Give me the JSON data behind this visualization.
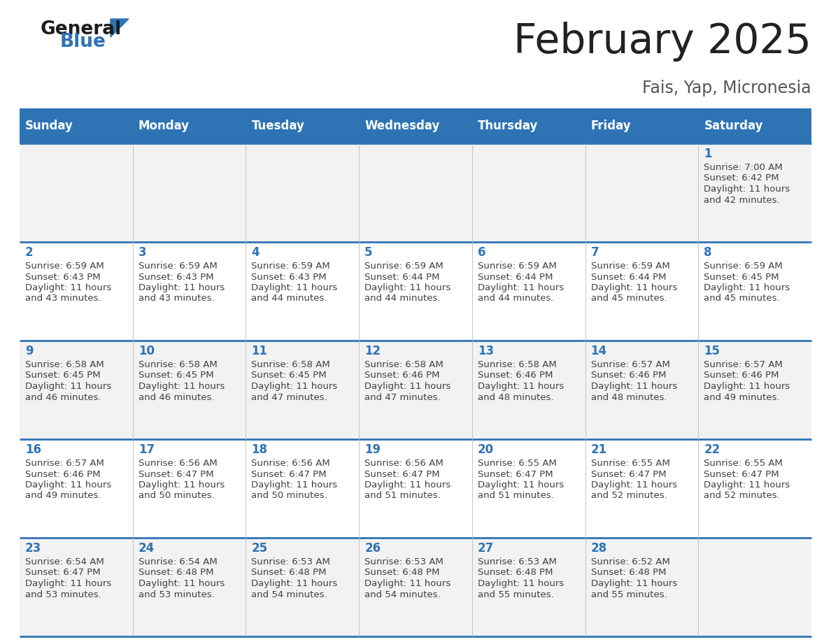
{
  "title": "February 2025",
  "subtitle": "Fais, Yap, Micronesia",
  "days_of_week": [
    "Sunday",
    "Monday",
    "Tuesday",
    "Wednesday",
    "Thursday",
    "Friday",
    "Saturday"
  ],
  "header_bg": "#2E74B5",
  "header_text": "#FFFFFF",
  "row_bg_odd": "#F2F2F2",
  "row_bg_even": "#FFFFFF",
  "cell_text_color": "#404040",
  "day_number_color": "#2E74B5",
  "divider_color": "#2E74B5",
  "title_color": "#222222",
  "subtitle_color": "#555555",
  "calendar": [
    [
      {
        "day": null,
        "sunrise": null,
        "sunset": null,
        "daylight": null
      },
      {
        "day": null,
        "sunrise": null,
        "sunset": null,
        "daylight": null
      },
      {
        "day": null,
        "sunrise": null,
        "sunset": null,
        "daylight": null
      },
      {
        "day": null,
        "sunrise": null,
        "sunset": null,
        "daylight": null
      },
      {
        "day": null,
        "sunrise": null,
        "sunset": null,
        "daylight": null
      },
      {
        "day": null,
        "sunrise": null,
        "sunset": null,
        "daylight": null
      },
      {
        "day": 1,
        "sunrise": "7:00 AM",
        "sunset": "6:42 PM",
        "daylight": "11 hours",
        "daylight2": "and 42 minutes."
      }
    ],
    [
      {
        "day": 2,
        "sunrise": "6:59 AM",
        "sunset": "6:43 PM",
        "daylight": "11 hours",
        "daylight2": "and 43 minutes."
      },
      {
        "day": 3,
        "sunrise": "6:59 AM",
        "sunset": "6:43 PM",
        "daylight": "11 hours",
        "daylight2": "and 43 minutes."
      },
      {
        "day": 4,
        "sunrise": "6:59 AM",
        "sunset": "6:43 PM",
        "daylight": "11 hours",
        "daylight2": "and 44 minutes."
      },
      {
        "day": 5,
        "sunrise": "6:59 AM",
        "sunset": "6:44 PM",
        "daylight": "11 hours",
        "daylight2": "and 44 minutes."
      },
      {
        "day": 6,
        "sunrise": "6:59 AM",
        "sunset": "6:44 PM",
        "daylight": "11 hours",
        "daylight2": "and 44 minutes."
      },
      {
        "day": 7,
        "sunrise": "6:59 AM",
        "sunset": "6:44 PM",
        "daylight": "11 hours",
        "daylight2": "and 45 minutes."
      },
      {
        "day": 8,
        "sunrise": "6:59 AM",
        "sunset": "6:45 PM",
        "daylight": "11 hours",
        "daylight2": "and 45 minutes."
      }
    ],
    [
      {
        "day": 9,
        "sunrise": "6:58 AM",
        "sunset": "6:45 PM",
        "daylight": "11 hours",
        "daylight2": "and 46 minutes."
      },
      {
        "day": 10,
        "sunrise": "6:58 AM",
        "sunset": "6:45 PM",
        "daylight": "11 hours",
        "daylight2": "and 46 minutes."
      },
      {
        "day": 11,
        "sunrise": "6:58 AM",
        "sunset": "6:45 PM",
        "daylight": "11 hours",
        "daylight2": "and 47 minutes."
      },
      {
        "day": 12,
        "sunrise": "6:58 AM",
        "sunset": "6:46 PM",
        "daylight": "11 hours",
        "daylight2": "and 47 minutes."
      },
      {
        "day": 13,
        "sunrise": "6:58 AM",
        "sunset": "6:46 PM",
        "daylight": "11 hours",
        "daylight2": "and 48 minutes."
      },
      {
        "day": 14,
        "sunrise": "6:57 AM",
        "sunset": "6:46 PM",
        "daylight": "11 hours",
        "daylight2": "and 48 minutes."
      },
      {
        "day": 15,
        "sunrise": "6:57 AM",
        "sunset": "6:46 PM",
        "daylight": "11 hours",
        "daylight2": "and 49 minutes."
      }
    ],
    [
      {
        "day": 16,
        "sunrise": "6:57 AM",
        "sunset": "6:46 PM",
        "daylight": "11 hours",
        "daylight2": "and 49 minutes."
      },
      {
        "day": 17,
        "sunrise": "6:56 AM",
        "sunset": "6:47 PM",
        "daylight": "11 hours",
        "daylight2": "and 50 minutes."
      },
      {
        "day": 18,
        "sunrise": "6:56 AM",
        "sunset": "6:47 PM",
        "daylight": "11 hours",
        "daylight2": "and 50 minutes."
      },
      {
        "day": 19,
        "sunrise": "6:56 AM",
        "sunset": "6:47 PM",
        "daylight": "11 hours",
        "daylight2": "and 51 minutes."
      },
      {
        "day": 20,
        "sunrise": "6:55 AM",
        "sunset": "6:47 PM",
        "daylight": "11 hours",
        "daylight2": "and 51 minutes."
      },
      {
        "day": 21,
        "sunrise": "6:55 AM",
        "sunset": "6:47 PM",
        "daylight": "11 hours",
        "daylight2": "and 52 minutes."
      },
      {
        "day": 22,
        "sunrise": "6:55 AM",
        "sunset": "6:47 PM",
        "daylight": "11 hours",
        "daylight2": "and 52 minutes."
      }
    ],
    [
      {
        "day": 23,
        "sunrise": "6:54 AM",
        "sunset": "6:47 PM",
        "daylight": "11 hours",
        "daylight2": "and 53 minutes."
      },
      {
        "day": 24,
        "sunrise": "6:54 AM",
        "sunset": "6:48 PM",
        "daylight": "11 hours",
        "daylight2": "and 53 minutes."
      },
      {
        "day": 25,
        "sunrise": "6:53 AM",
        "sunset": "6:48 PM",
        "daylight": "11 hours",
        "daylight2": "and 54 minutes."
      },
      {
        "day": 26,
        "sunrise": "6:53 AM",
        "sunset": "6:48 PM",
        "daylight": "11 hours",
        "daylight2": "and 54 minutes."
      },
      {
        "day": 27,
        "sunrise": "6:53 AM",
        "sunset": "6:48 PM",
        "daylight": "11 hours",
        "daylight2": "and 55 minutes."
      },
      {
        "day": 28,
        "sunrise": "6:52 AM",
        "sunset": "6:48 PM",
        "daylight": "11 hours",
        "daylight2": "and 55 minutes."
      },
      {
        "day": null,
        "sunrise": null,
        "sunset": null,
        "daylight": null,
        "daylight2": null
      }
    ]
  ]
}
